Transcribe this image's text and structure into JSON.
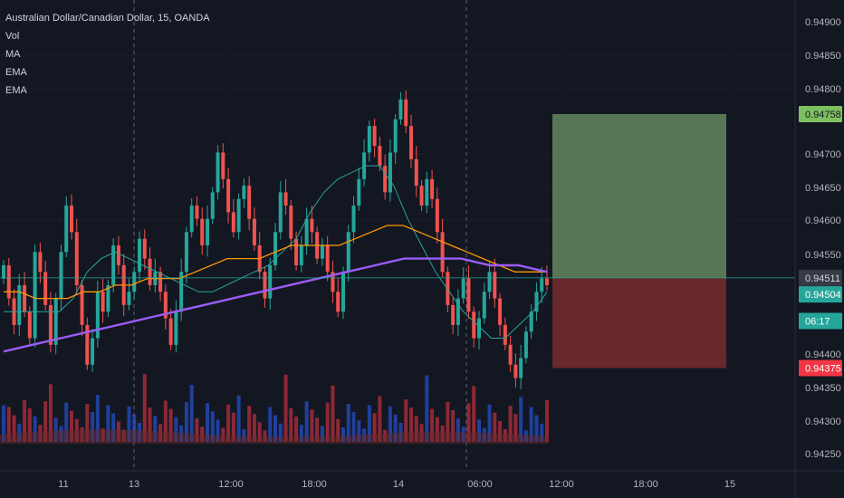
{
  "legend": {
    "symbol_title": "Australian Dollar/Canadian Dollar, 15, OANDA",
    "indicators": [
      "Vol",
      "MA",
      "EMA",
      "EMA"
    ]
  },
  "colors": {
    "background": "#131722",
    "grid": "#2a2e39",
    "up": "#26a69a",
    "down": "#ef5350",
    "vol_up": "#2962ff",
    "vol_down": "#f23645",
    "ma_line": "#26a69a",
    "ema_fast": "#ff9800",
    "ema_slow": "#9c5cf5",
    "target_zone": "#5b7b58",
    "stop_zone": "#6b2a2e",
    "tag_target": "#7cc05f",
    "tag_stop": "#f23645",
    "tag_current": "#363a45",
    "tag_last": "#26a69a"
  },
  "chart_data": {
    "type": "candlestick",
    "symbol": "Australian Dollar/Canadian Dollar",
    "interval": "15",
    "source": "OANDA",
    "y_axis": {
      "ylim": [
        0.9422,
        0.9493
      ],
      "ticks": [
        "0.94900",
        "0.94850",
        "0.94800",
        "0.94700",
        "0.94650",
        "0.94600",
        "0.94550",
        "0.94400",
        "0.94350",
        "0.94300",
        "0.94250"
      ],
      "partial_tick": "0"
    },
    "x_axis": {
      "ticks": [
        "11",
        "13",
        "12:00",
        "18:00",
        "14",
        "06:00",
        "12:00",
        "18:00",
        "15"
      ],
      "session_separators": [
        "13",
        "14",
        "06:00"
      ]
    },
    "price_tags": {
      "target": "0.94758",
      "current": "0.94511",
      "last": "0.94504",
      "countdown": "06:17",
      "stop": "0.94375"
    },
    "position": {
      "entry": 0.94511,
      "target": 0.94758,
      "stop": 0.94375
    },
    "series": [
      {
        "kind": "close",
        "values": [
          0.9453,
          0.9448,
          0.9444,
          0.945,
          0.9446,
          0.9442,
          0.9455,
          0.9452,
          0.9447,
          0.9441,
          0.9448,
          0.9455,
          0.9462,
          0.9458,
          0.945,
          0.9444,
          0.9438,
          0.9442,
          0.9449,
          0.9446,
          0.945,
          0.9456,
          0.9453,
          0.9447,
          0.9449,
          0.9452,
          0.9457,
          0.9454,
          0.945,
          0.9452,
          0.9449,
          0.9445,
          0.9441,
          0.9446,
          0.9452,
          0.9458,
          0.9462,
          0.946,
          0.9456,
          0.946,
          0.9464,
          0.947,
          0.9466,
          0.9461,
          0.9458,
          0.9463,
          0.9465,
          0.946,
          0.9456,
          0.9452,
          0.9448,
          0.9453,
          0.9458,
          0.9464,
          0.9462,
          0.9457,
          0.9453,
          0.9456,
          0.946,
          0.9458,
          0.9454,
          0.9456,
          0.9452,
          0.9449,
          0.9446,
          0.9452,
          0.9458,
          0.9462,
          0.9466,
          0.947,
          0.9474,
          0.9471,
          0.9468,
          0.9464,
          0.947,
          0.9475,
          0.9478,
          0.9474,
          0.9469,
          0.9465,
          0.9462,
          0.9466,
          0.9463,
          0.9458,
          0.9452,
          0.9447,
          0.9444,
          0.9448,
          0.9451,
          0.9446,
          0.9442,
          0.9445,
          0.9449,
          0.9452,
          0.9448,
          0.9444,
          0.9441,
          0.9438,
          0.9436,
          0.9439,
          0.9443,
          0.9446,
          0.9449,
          0.9451,
          0.945
        ]
      },
      {
        "kind": "ma",
        "values": [
          0.9446,
          0.9446,
          0.9446,
          0.9446,
          0.9446,
          0.9448,
          0.9452,
          0.9454,
          0.9455,
          0.9454,
          0.9453,
          0.9452,
          0.9451,
          0.945,
          0.9449,
          0.9449,
          0.945,
          0.9451,
          0.9452,
          0.9453,
          0.9455,
          0.9457,
          0.9461,
          0.9464,
          0.9466,
          0.9467,
          0.9468,
          0.9468,
          0.9465,
          0.946,
          0.9456,
          0.9452,
          0.9449,
          0.9446,
          0.9444,
          0.9442,
          0.9442,
          0.9444,
          0.9446,
          0.9449
        ]
      },
      {
        "kind": "ema_fast",
        "values": [
          0.9449,
          0.9449,
          0.9448,
          0.9448,
          0.9448,
          0.9449,
          0.9449,
          0.945,
          0.945,
          0.9451,
          0.9451,
          0.9451,
          0.9452,
          0.9453,
          0.9454,
          0.9454,
          0.9454,
          0.9455,
          0.9456,
          0.9456,
          0.9456,
          0.9456,
          0.9457,
          0.9458,
          0.9459,
          0.9459,
          0.9458,
          0.9457,
          0.9456,
          0.9455,
          0.9454,
          0.9453,
          0.9452,
          0.9452,
          0.9452
        ]
      },
      {
        "kind": "ema_slow",
        "values": [
          0.944,
          0.9441,
          0.9442,
          0.9443,
          0.9444,
          0.9445,
          0.9446,
          0.9447,
          0.9448,
          0.9449,
          0.945,
          0.9451,
          0.9452,
          0.9453,
          0.9454,
          0.9454,
          0.9454,
          0.9453,
          0.9453,
          0.9452
        ]
      }
    ]
  }
}
